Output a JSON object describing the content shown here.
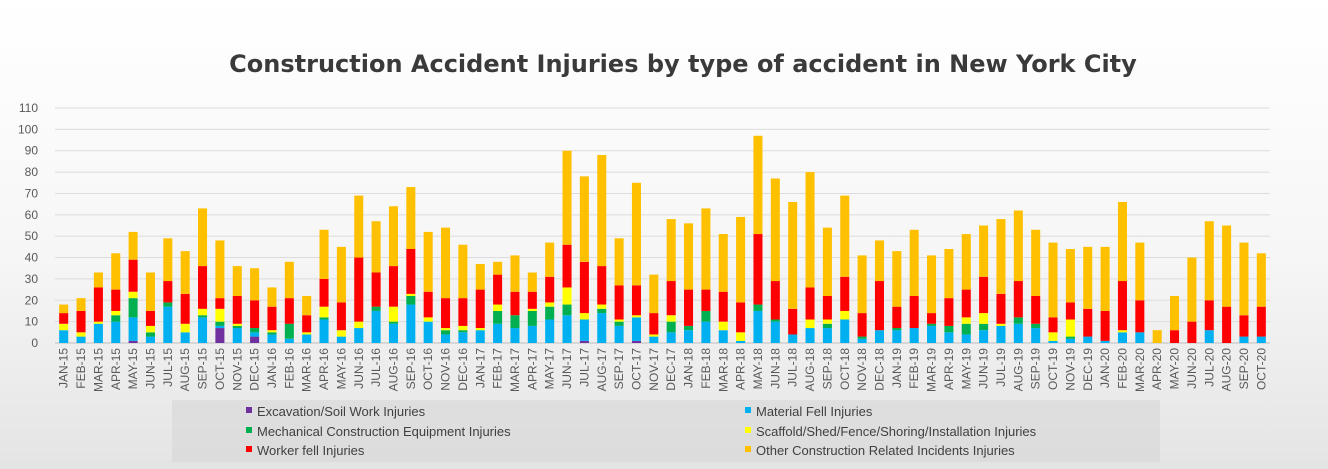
{
  "chart_data": {
    "type": "bar",
    "stacked": true,
    "title": "Construction Accident Injuries by type of accident in New York City",
    "xlabel": "",
    "ylabel": "",
    "ylim": [
      0,
      110
    ],
    "yticks": [
      0,
      10,
      20,
      30,
      40,
      50,
      60,
      70,
      80,
      90,
      100,
      110
    ],
    "grid": true,
    "legend_position": "bottom",
    "categories": [
      "JAN-15",
      "FEB-15",
      "MAR-15",
      "APR-15",
      "MAY-15",
      "JUN-15",
      "JUL-15",
      "AUG-15",
      "SEP-15",
      "OCT-15",
      "NOV-15",
      "DEC-15",
      "JAN-16",
      "FEB-16",
      "MAR-16",
      "APR-16",
      "MAY-16",
      "JUN-16",
      "JUL-16",
      "AUG-16",
      "SEP-16",
      "OCT-16",
      "NOV-16",
      "DEC-16",
      "JAN-17",
      "FEB-17",
      "MAR-17",
      "APR-17",
      "MAY-17",
      "JUN-17",
      "JUL-17",
      "AUG-17",
      "SEP-17",
      "OCT-17",
      "NOV-17",
      "DEC-17",
      "JAN-18",
      "FEB-18",
      "MAR-18",
      "APR-18",
      "MAY-18",
      "JUN-18",
      "JUL-18",
      "AUG-18",
      "SEP-18",
      "OCT-18",
      "NOV-18",
      "DEC-18",
      "JAN-19",
      "FEB-19",
      "MAR-19",
      "APR-19",
      "MAY-19",
      "JUN-19",
      "JUL-19",
      "AUG-19",
      "SEP-19",
      "OCT-19",
      "NOV-19",
      "DEC-19",
      "JAN-20",
      "FEB-20",
      "MAR-20",
      "APR-20",
      "MAY-20",
      "JUN-20",
      "JUL-20",
      "AUG-20",
      "SEP-20",
      "OCT-20"
    ],
    "labeled_categories": [
      "JAN-15",
      "FEB-15",
      "MAR-15",
      "APR-15",
      "MAY-15",
      "JUN-15",
      "JUL-15",
      "AUG-15",
      "SEP-15",
      "OCT-15",
      "NOV-15",
      "DEC-15",
      "JAN-16",
      "FEB-16",
      "MAR-16",
      "APR-16",
      "MAY-16",
      "JUN-16",
      "JUL-16",
      "AUG-16",
      "SEP-16",
      "OCT-16",
      "NOV-16",
      "DEC-16",
      "JAN-17",
      "FEB-17",
      "MAR-17",
      "APR-17",
      "MAY-17",
      "JUN-17",
      "JUL-17",
      "AUG-17",
      "SEP-17",
      "OCT-17",
      "NOV-17",
      "DEC-17",
      "JAN-18",
      "FEB-18",
      "MAR-18",
      "APR-18",
      "MAY-18",
      "JUN-18",
      "JUL-18",
      "AUG-18",
      "SEP-18",
      "OCT-18",
      "NOV-18",
      "DEC-18",
      "JAN-19",
      "FEB-19",
      "MAR-19",
      "APR-19",
      "MAY-19",
      "JUN-19",
      "JUL-19",
      "AUG-19",
      "SEP-19",
      "OCT-19",
      "NOV-19",
      "DEC-19",
      "JAN-20",
      "FEB-20",
      "MAR-20",
      "APR-20",
      "MAY-20",
      "JUN-20",
      "JUL-20",
      "AUG-20",
      "SEP-20",
      "OCT-20"
    ],
    "series": [
      {
        "name": "Excavation/Soil Work Injuries",
        "color": "#7030a0",
        "values": [
          0,
          0,
          0,
          0,
          1,
          0,
          0,
          0,
          0,
          7,
          0,
          3,
          0,
          0,
          0,
          0,
          0,
          0,
          0,
          0,
          0,
          0,
          0,
          0,
          0,
          0,
          0,
          0,
          0,
          0,
          1,
          0,
          0,
          1,
          0,
          0,
          0,
          0,
          0,
          0,
          0,
          0,
          0,
          0,
          0,
          0,
          0,
          0,
          0,
          0,
          0,
          0,
          0,
          0,
          0,
          0,
          0,
          0,
          0,
          0,
          0,
          0,
          0,
          0,
          0,
          0,
          0,
          0,
          0,
          0
        ]
      },
      {
        "name": "Material Fell Injuries",
        "color": "#00b0f0",
        "values": [
          6,
          3,
          9,
          10,
          11,
          3,
          17,
          5,
          12,
          1,
          7,
          2,
          4,
          2,
          4,
          11,
          3,
          7,
          15,
          9,
          18,
          10,
          4,
          5,
          6,
          9,
          7,
          8,
          11,
          13,
          10,
          14,
          8,
          11,
          3,
          5,
          6,
          10,
          6,
          1,
          15,
          10,
          4,
          7,
          7,
          11,
          2,
          6,
          6,
          7,
          8,
          5,
          4,
          6,
          8,
          9,
          7,
          1,
          2,
          3,
          1,
          5,
          5,
          0,
          0,
          0,
          6,
          0,
          3,
          3
        ]
      },
      {
        "name": "Mechanical Construction Equipment Injuries",
        "color": "#00b050",
        "values": [
          0,
          0,
          0,
          3,
          9,
          2,
          2,
          0,
          1,
          2,
          1,
          2,
          1,
          7,
          0,
          1,
          0,
          0,
          2,
          1,
          4,
          0,
          2,
          1,
          0,
          6,
          6,
          7,
          6,
          5,
          0,
          2,
          2,
          0,
          0,
          5,
          2,
          5,
          0,
          0,
          3,
          1,
          0,
          0,
          2,
          0,
          1,
          0,
          1,
          0,
          1,
          3,
          5,
          3,
          0,
          3,
          2,
          0,
          1,
          0,
          0,
          0,
          0,
          0,
          0,
          0,
          0,
          0,
          0,
          0
        ]
      },
      {
        "name": "Scaffold/Shed/Fence/Shoring/Installation Injuries",
        "color": "#ffff00",
        "values": [
          3,
          2,
          1,
          2,
          3,
          3,
          0,
          4,
          3,
          6,
          1,
          0,
          1,
          0,
          1,
          5,
          3,
          3,
          0,
          7,
          1,
          2,
          1,
          2,
          1,
          3,
          0,
          1,
          2,
          8,
          3,
          2,
          1,
          1,
          1,
          3,
          0,
          0,
          4,
          4,
          0,
          0,
          0,
          4,
          2,
          4,
          0,
          0,
          0,
          0,
          0,
          0,
          3,
          5,
          1,
          0,
          0,
          4,
          8,
          0,
          0,
          1,
          0,
          0,
          0,
          0,
          0,
          0,
          0,
          0
        ]
      },
      {
        "name": "Worker fell Injuries",
        "color": "#ff0000",
        "values": [
          5,
          10,
          16,
          10,
          15,
          7,
          10,
          14,
          20,
          5,
          13,
          13,
          11,
          12,
          8,
          13,
          13,
          30,
          16,
          19,
          21,
          12,
          14,
          13,
          18,
          14,
          11,
          8,
          12,
          20,
          24,
          18,
          16,
          14,
          10,
          16,
          17,
          10,
          14,
          14,
          33,
          18,
          12,
          15,
          11,
          16,
          11,
          23,
          10,
          15,
          5,
          13,
          13,
          17,
          14,
          17,
          13,
          7,
          8,
          13,
          14,
          23,
          15,
          0,
          6,
          10,
          14,
          17,
          10,
          14
        ]
      },
      {
        "name": "Other Construction Related Incidents Injuries",
        "color": "#ffc000",
        "values": [
          4,
          6,
          7,
          17,
          13,
          18,
          20,
          20,
          27,
          27,
          14,
          15,
          9,
          17,
          9,
          23,
          26,
          29,
          24,
          28,
          29,
          28,
          33,
          25,
          12,
          6,
          17,
          9,
          16,
          44,
          40,
          52,
          22,
          48,
          18,
          29,
          31,
          38,
          27,
          40,
          46,
          48,
          50,
          54,
          32,
          38,
          27,
          19,
          26,
          31,
          27,
          23,
          26,
          24,
          35,
          33,
          31,
          35,
          25,
          29,
          30,
          37,
          27,
          6,
          16,
          30,
          37,
          38,
          34,
          25
        ]
      }
    ]
  }
}
